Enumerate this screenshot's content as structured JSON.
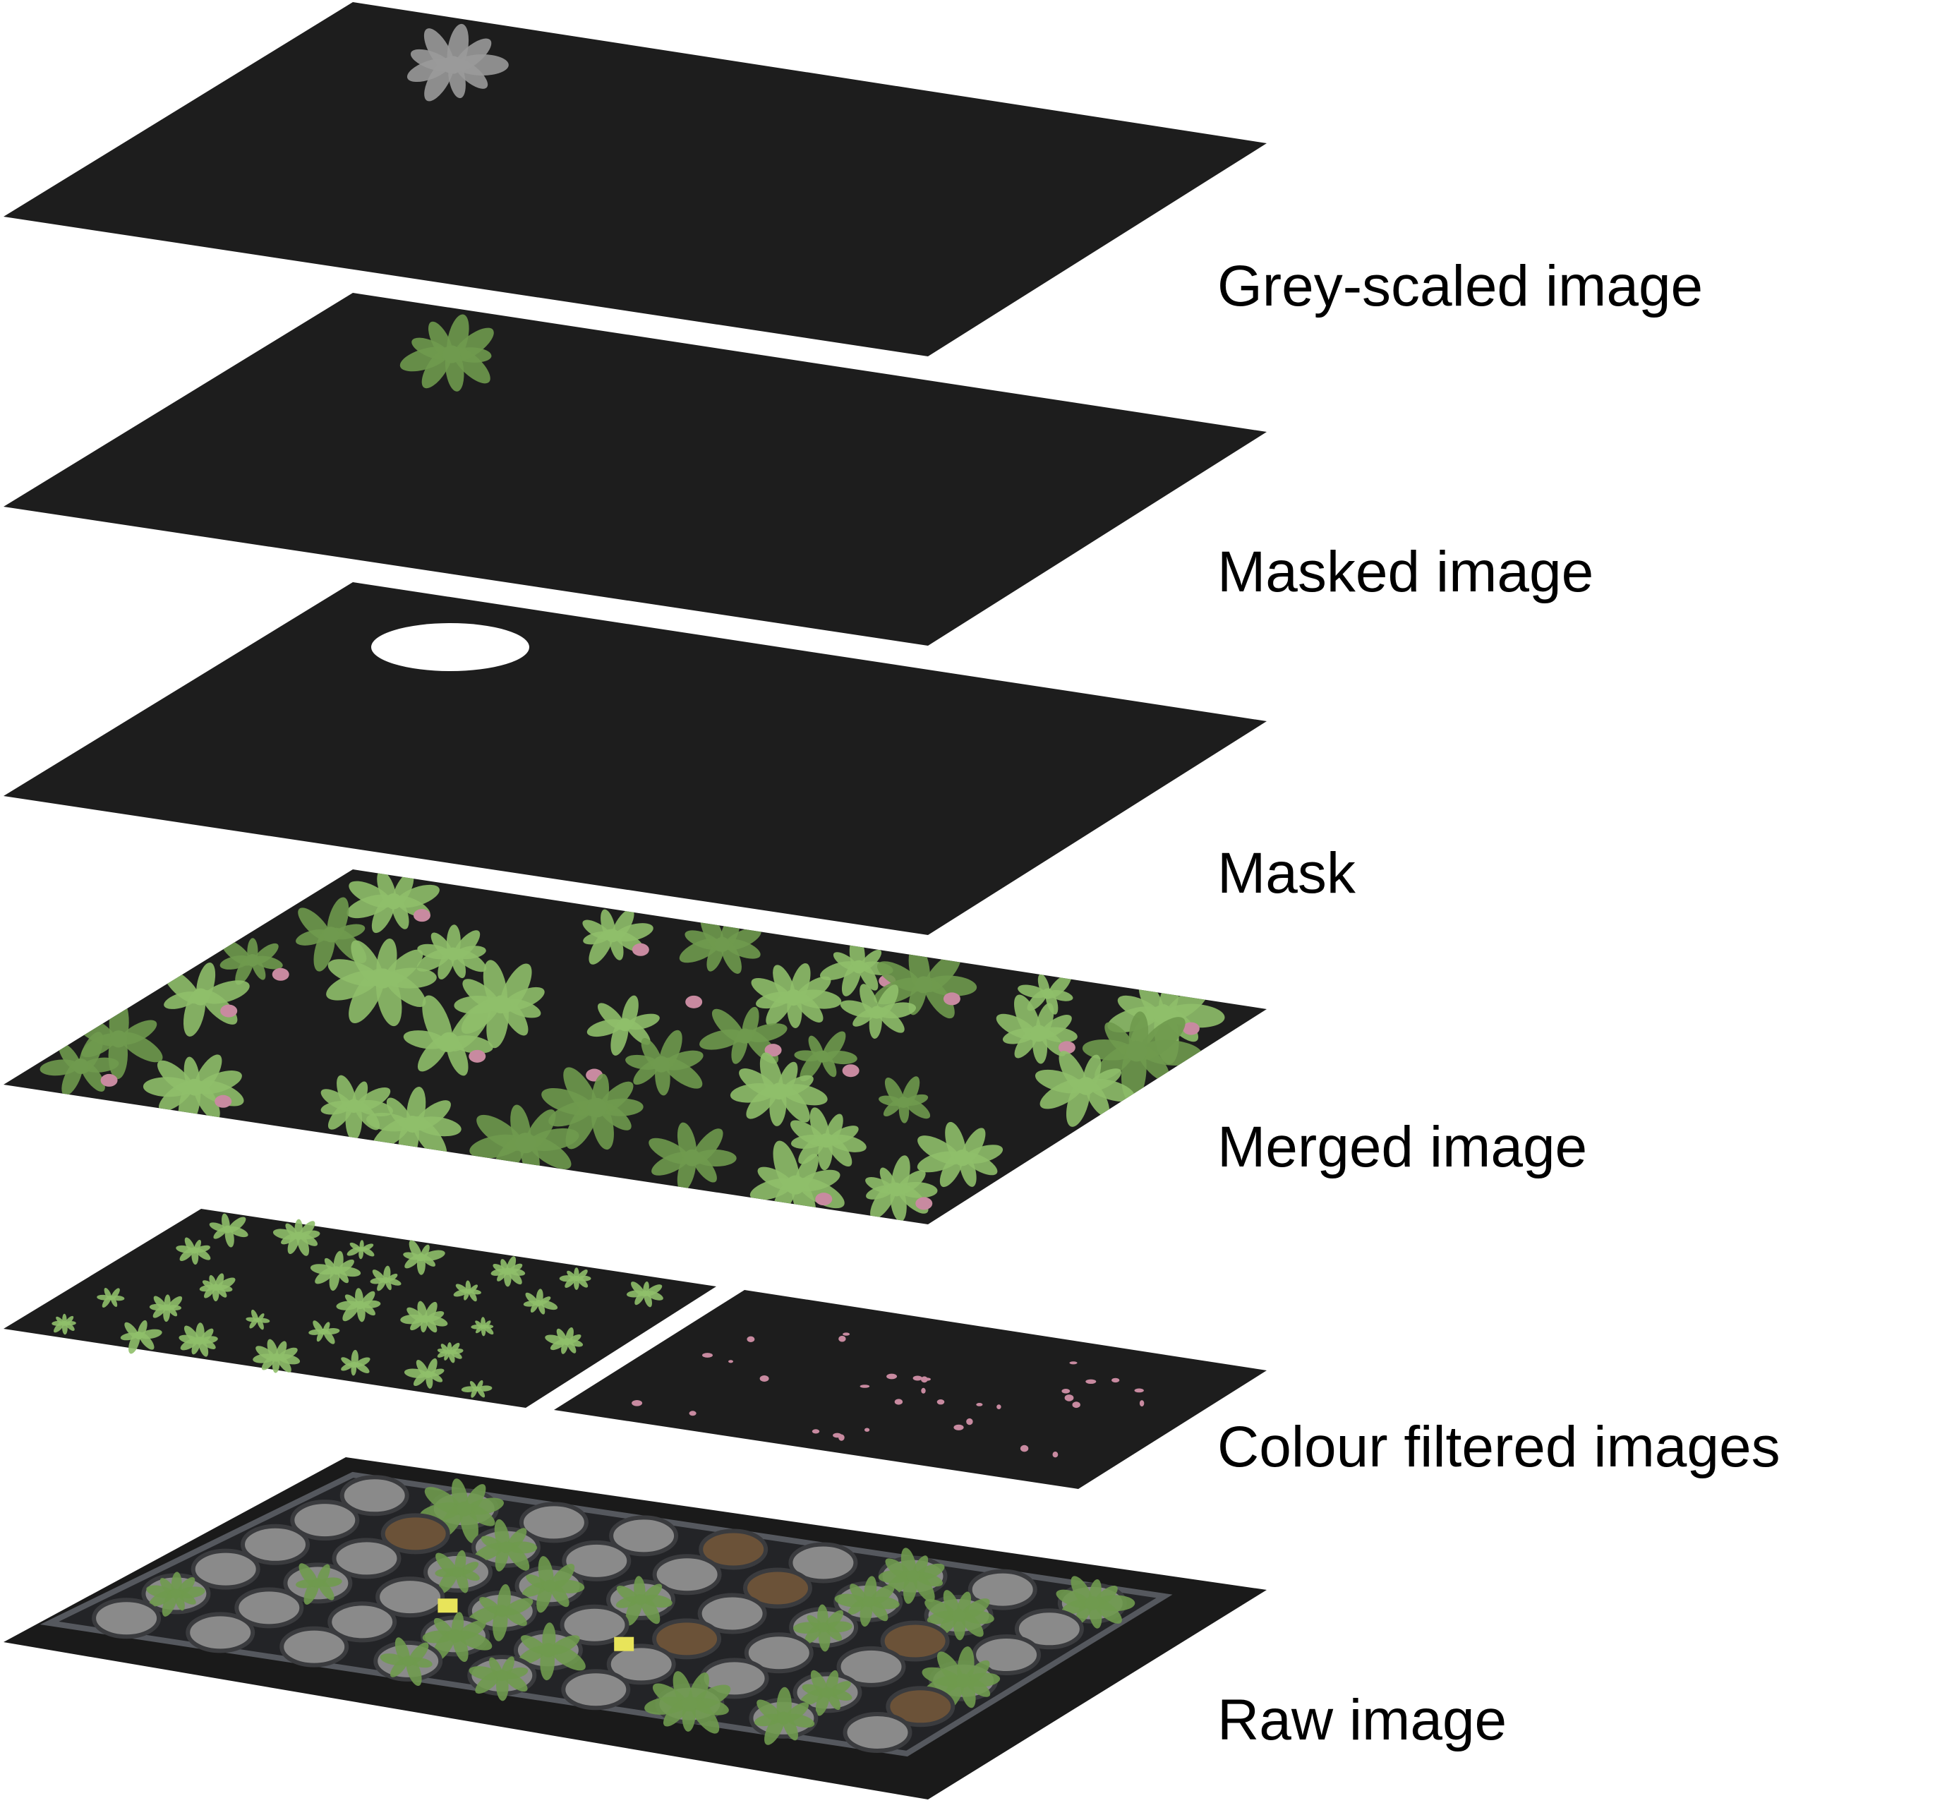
{
  "layers": [
    {
      "label": "Grey-scaled image",
      "content": "grey-rosette"
    },
    {
      "label": "Masked image",
      "content": "green-rosette"
    },
    {
      "label": "Mask",
      "content": "white-ellipse"
    },
    {
      "label": "Merged image",
      "content": "merged-plants"
    },
    {
      "label": "Colour filtered images",
      "content": "split-filtered"
    },
    {
      "label": "Raw image",
      "content": "raw-tray"
    }
  ],
  "colors": {
    "sheet": "#1d1d1d",
    "sheet_raw": "#1a1a1a",
    "mask_ellipse": "#ffffff",
    "grey_plant": "#9a9a9a",
    "green_plant": "#6f9a4e",
    "light_green_plant": "#8fbf6a",
    "pink_plant": "#c88aa0",
    "pot": "#8a8a8a",
    "soil": "#6b5238",
    "label_tag": "#e8e45a"
  },
  "icons": {
    "rosette": "rosette-icon",
    "pot": "pot-icon",
    "tag": "label-tag-icon"
  }
}
